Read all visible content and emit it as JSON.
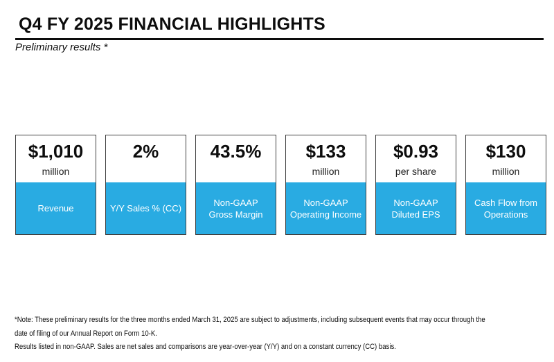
{
  "header": {
    "title": "Q4 FY 2025 FINANCIAL HIGHLIGHTS",
    "subtitle": "Preliminary results *"
  },
  "colors": {
    "accent_blue": "#29abe2",
    "card_border": "#3f3f3f",
    "title_black": "#0d0d0d",
    "label_text": "#ffffff"
  },
  "cards": [
    {
      "value": "$1,010",
      "unit": "million",
      "label": "Revenue"
    },
    {
      "value": "2%",
      "unit": "",
      "label": "Y/Y Sales % (CC)"
    },
    {
      "value": "43.5%",
      "unit": "",
      "label": "Non-GAAP\nGross Margin"
    },
    {
      "value": "$133",
      "unit": "million",
      "label": "Non-GAAP\nOperating Income"
    },
    {
      "value": "$0.93",
      "unit": "per share",
      "label": "Non-GAAP\nDiluted EPS"
    },
    {
      "value": "$130",
      "unit": "million",
      "label": "Cash Flow from\nOperations"
    }
  ],
  "footnotes": {
    "line1": "*Note: These preliminary results for the three months ended March 31, 2025 are subject to adjustments, including subsequent events that may occur through the",
    "line2": "date of filing of our Annual Report on Form 10-K.",
    "line3": "Results listed in non-GAAP. Sales are net sales and comparisons are year-over-year (Y/Y) and on a constant currency (CC) basis."
  }
}
